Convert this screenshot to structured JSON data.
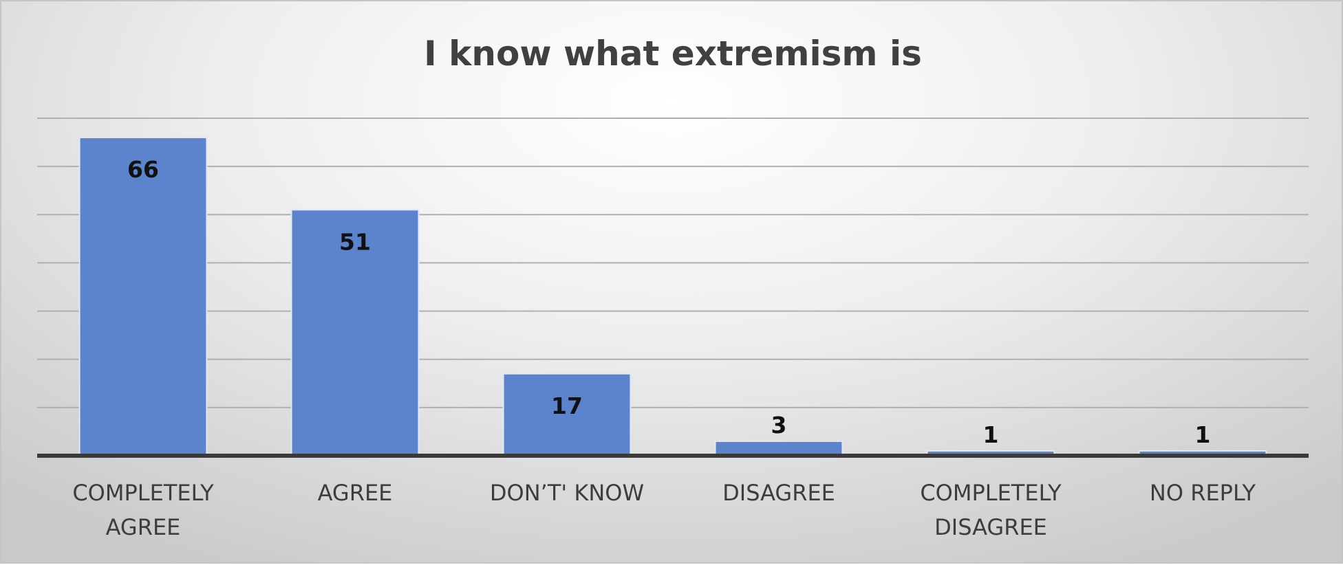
{
  "chart_data": {
    "type": "bar",
    "title": "I know what extremism is",
    "categories": [
      [
        "COMPLETELY",
        "AGREE"
      ],
      [
        "AGREE"
      ],
      [
        "DON’T' KNOW"
      ],
      [
        "DISAGREE"
      ],
      [
        "COMPLETELY",
        "DISAGREE"
      ],
      [
        "NO REPLY"
      ]
    ],
    "values": [
      66,
      51,
      17,
      3,
      1,
      1
    ],
    "ylim": [
      0,
      70
    ],
    "grid": true,
    "legend": "none",
    "colors": {
      "bar": "#5b84cc",
      "bar_edge": "#dfe7f6",
      "grid": "#b0b0b0",
      "axis": "#3a3a3a"
    }
  }
}
